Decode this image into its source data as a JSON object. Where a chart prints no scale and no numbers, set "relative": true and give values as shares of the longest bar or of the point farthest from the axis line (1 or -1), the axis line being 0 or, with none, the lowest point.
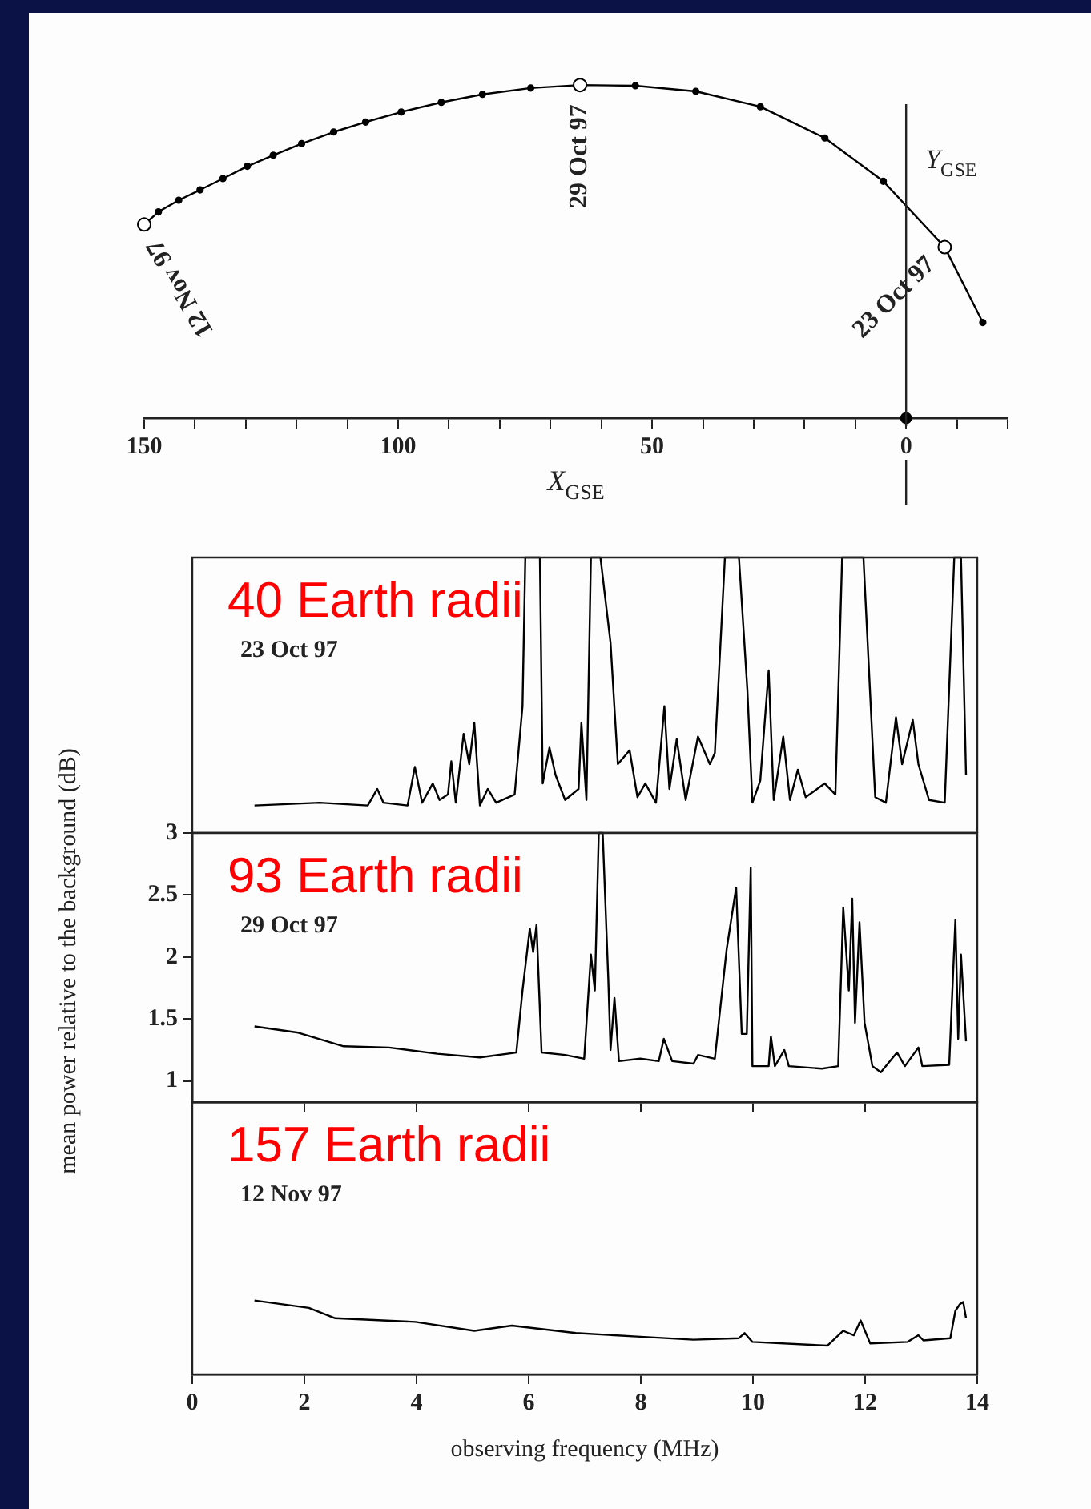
{
  "chart_data": [
    {
      "type": "line",
      "relative": true,
      "xlabel": "X$_{GSE}$",
      "xlim": [
        150,
        -20
      ],
      "xticks": [
        150,
        {
          "value": 140,
          "label": null
        },
        {
          "value": 130,
          "label": null
        },
        {
          "value": 120,
          "label": null
        },
        {
          "value": 110,
          "label": null
        },
        100,
        {
          "value": 90,
          "label": null
        },
        {
          "value": 80,
          "label": null
        },
        {
          "value": 70,
          "label": null
        },
        {
          "value": 60,
          "label": null
        },
        50,
        {
          "value": 40,
          "label": null
        },
        {
          "value": 30,
          "label": null
        },
        {
          "value": 20,
          "label": null
        },
        {
          "value": 10,
          "label": null
        },
        0,
        {
          "value": -10,
          "label": null
        },
        {
          "value": -20,
          "label": null
        }
      ],
      "ref_lines": [
        {
          "axis": "x",
          "value": 0,
          "label": "Y$_{GSE}$"
        }
      ],
      "annotations": [
        {
          "text": "12 Nov 97",
          "x": 150,
          "y": 0.581
        },
        {
          "text": "29 Oct 97",
          "x": 64.2,
          "y": 1
        },
        {
          "text": "23 Oct 97",
          "x": -7.6,
          "y": 0.513
        }
      ],
      "series": [
        {
          "type": "line",
          "color": "#000000",
          "marker": "circle",
          "x": [
            150,
            147.2,
            143.2,
            139.0,
            134.5,
            129.7,
            124.6,
            119.0,
            112.7,
            106.4,
            99.4,
            91.5,
            83.4,
            73.9,
            64.2,
            53.3,
            41.4,
            28.7,
            16.0,
            4.5,
            -7.6,
            -15.1
          ],
          "values": [
            0.581,
            0.619,
            0.654,
            0.685,
            0.719,
            0.756,
            0.789,
            0.824,
            0.859,
            0.889,
            0.919,
            0.948,
            0.972,
            0.991,
            1,
            0.998,
            0.981,
            0.935,
            0.841,
            0.711,
            0.513,
            0.287
          ]
        },
        {
          "type": "scatter",
          "color": "#000000",
          "marker": "circle",
          "x": [
            150,
            64.2,
            -7.6
          ],
          "values": [
            0.581,
            1,
            0.513
          ]
        },
        {
          "type": "scatter",
          "color": "#000000",
          "marker": "circle",
          "x": [
            0
          ],
          "values": [
            0
          ]
        }
      ]
    },
    {
      "type": "line",
      "relative": true,
      "color": "#000000",
      "xlim": [
        0,
        14
      ],
      "xticks": [
        0,
        2,
        4,
        6,
        8,
        10,
        12,
        14
      ],
      "tick_labels": false,
      "annotations": [
        "40 Earth radii",
        "23 Oct 97"
      ],
      "x": [
        1.11,
        2.27,
        3.13,
        3.3,
        3.41,
        3.84,
        3.97,
        4.1,
        4.29,
        4.41,
        4.56,
        4.62,
        4.7,
        4.84,
        4.94,
        5.03,
        5.13,
        5.27,
        5.42,
        5.75,
        5.89,
        5.94,
        6.2,
        6.25,
        6.37,
        6.48,
        6.65,
        6.89,
        6.94,
        7.03,
        7.11,
        7.28,
        7.46,
        7.59,
        7.8,
        7.94,
        8.08,
        8.27,
        8.42,
        8.51,
        8.64,
        8.8,
        9.02,
        9.23,
        9.32,
        9.5,
        9.75,
        9.9,
        9.99,
        10.13,
        10.28,
        10.37,
        10.54,
        10.66,
        10.8,
        10.94,
        11.28,
        11.47,
        11.59,
        11.97,
        12.18,
        12.37,
        12.55,
        12.66,
        12.85,
        12.95,
        13.14,
        13.42,
        13.59,
        13.71,
        13.8
      ],
      "values": [
        0.1,
        0.11,
        0.1,
        0.16,
        0.11,
        0.1,
        0.24,
        0.11,
        0.18,
        0.12,
        0.14,
        0.26,
        0.11,
        0.36,
        0.25,
        0.4,
        0.1,
        0.16,
        0.11,
        0.14,
        0.46,
        1,
        1,
        0.18,
        0.31,
        0.21,
        0.12,
        0.16,
        0.4,
        0.12,
        1,
        1,
        0.69,
        0.25,
        0.3,
        0.13,
        0.18,
        0.11,
        0.46,
        0.16,
        0.34,
        0.12,
        0.35,
        0.25,
        0.29,
        1,
        1,
        0.52,
        0.11,
        0.19,
        0.59,
        0.12,
        0.35,
        0.12,
        0.23,
        0.13,
        0.18,
        0.14,
        1,
        1,
        0.13,
        0.11,
        0.42,
        0.25,
        0.41,
        0.25,
        0.12,
        0.11,
        1,
        1,
        0.21
      ]
    },
    {
      "type": "line",
      "color": "#000000",
      "xlim": [
        0,
        14
      ],
      "xticks": [
        0,
        2,
        4,
        6,
        8,
        10,
        12,
        14
      ],
      "ylim": [
        0.83,
        3
      ],
      "yticks": [
        1,
        1.5,
        2,
        2.5,
        3
      ],
      "tick_labels": "y",
      "ylabel": "mean power relative to the background (dB)",
      "annotations": [
        "93 Earth radii",
        "29 Oct 97"
      ],
      "x": [
        1.11,
        1.89,
        2.7,
        3.51,
        4.37,
        5.13,
        5.78,
        5.89,
        6.02,
        6.08,
        6.14,
        6.23,
        6.65,
        6.99,
        7.11,
        7.18,
        7.25,
        7.32,
        7.42,
        7.46,
        7.53,
        7.61,
        7.99,
        8.32,
        8.41,
        8.56,
        8.94,
        9.02,
        9.32,
        9.53,
        9.7,
        9.8,
        9.89,
        9.96,
        9.99,
        10.28,
        10.32,
        10.39,
        10.56,
        10.64,
        11.23,
        11.52,
        11.61,
        11.71,
        11.77,
        11.82,
        11.9,
        11.99,
        12.13,
        12.28,
        12.57,
        12.71,
        12.95,
        13.02,
        13.5,
        13.61,
        13.66,
        13.71,
        13.8
      ],
      "values": [
        1.44,
        1.39,
        1.28,
        1.27,
        1.22,
        1.19,
        1.23,
        1.73,
        2.23,
        2.04,
        2.26,
        1.23,
        1.21,
        1.18,
        2.02,
        1.73,
        3,
        3,
        1.82,
        1.25,
        1.67,
        1.16,
        1.18,
        1.16,
        1.34,
        1.16,
        1.14,
        1.21,
        1.18,
        2.06,
        2.56,
        1.38,
        1.38,
        2.72,
        1.12,
        1.12,
        1.36,
        1.12,
        1.25,
        1.12,
        1.1,
        1.12,
        2.4,
        1.73,
        2.47,
        1.47,
        2.28,
        1.47,
        1.12,
        1.07,
        1.23,
        1.12,
        1.27,
        1.12,
        1.13,
        2.3,
        1.34,
        2.02,
        1.32
      ]
    },
    {
      "type": "line",
      "relative": true,
      "color": "#000000",
      "xlim": [
        0,
        14
      ],
      "xticks": [
        0,
        2,
        4,
        6,
        8,
        10,
        12,
        14
      ],
      "tick_labels": "x",
      "xlabel": "observing frequency (MHz)",
      "annotations": [
        "157 Earth radii",
        "12 Nov 97"
      ],
      "x": [
        1.11,
        2.08,
        2.55,
        3.98,
        5.03,
        5.7,
        6.84,
        7.99,
        8.94,
        9.75,
        9.85,
        9.99,
        11.33,
        11.61,
        11.8,
        11.92,
        12.09,
        12.76,
        12.95,
        13.04,
        13.52,
        13.61,
        13.69,
        13.75,
        13.8
      ],
      "values": [
        1,
        0.9,
        0.76,
        0.71,
        0.59,
        0.66,
        0.56,
        0.51,
        0.47,
        0.49,
        0.56,
        0.44,
        0.39,
        0.59,
        0.53,
        0.73,
        0.42,
        0.44,
        0.53,
        0.46,
        0.49,
        0.86,
        0.95,
        0.98,
        0.76
      ]
    }
  ]
}
